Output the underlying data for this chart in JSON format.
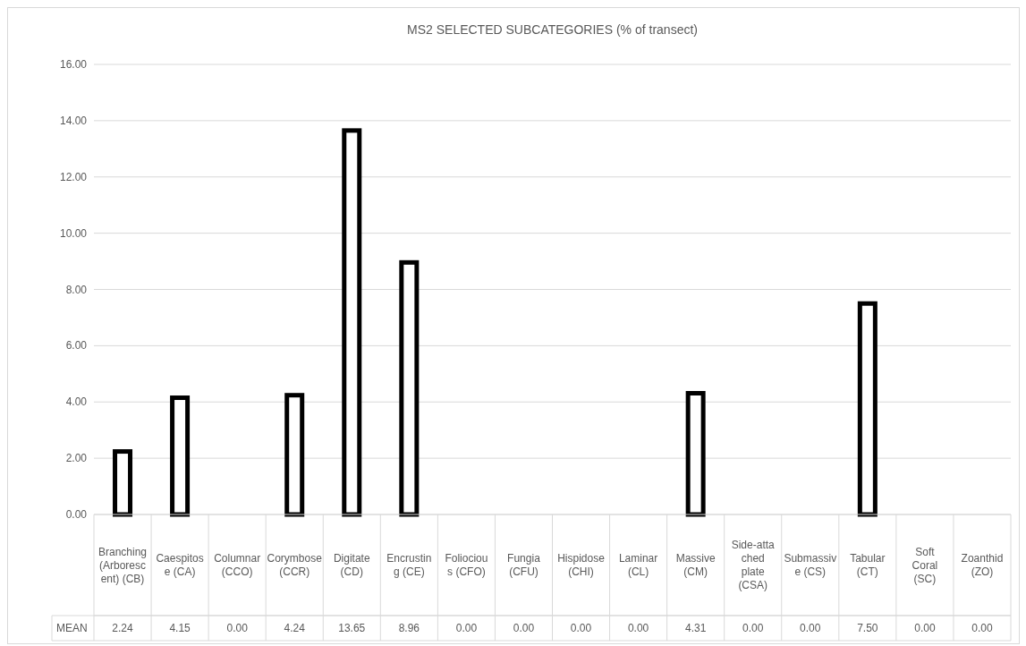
{
  "chart_data": {
    "type": "bar",
    "title": "MS2 SELECTED SUBCATEGORIES (% of transect)",
    "categories": [
      "Branching (Arborescent) (CB)",
      "Caespitose (CA)",
      "Columnar (CCO)",
      "Corymbose (CCR)",
      "Digitate (CD)",
      "Encrusting (CE)",
      "Foliocious (CFO)",
      "Fungia (CFU)",
      "Hispidose (CHI)",
      "Laminar (CL)",
      "Massive (CM)",
      "Side-attached plate (CSA)",
      "Submassive (CS)",
      "Tabular (CT)",
      "Soft Coral (SC)",
      "Zoanthid (ZO)"
    ],
    "series": [
      {
        "name": "MEAN",
        "color": "#000000",
        "values": [
          2.24,
          4.15,
          0.0,
          4.24,
          13.65,
          8.96,
          0.0,
          0.0,
          0.0,
          0.0,
          4.31,
          0.0,
          0.0,
          7.5,
          0.0,
          0.0
        ],
        "value_labels": [
          "2.24",
          "4.15",
          "0.00",
          "4.24",
          "13.65",
          "8.96",
          "0.00",
          "0.00",
          "0.00",
          "0.00",
          "4.31",
          "0.00",
          "0.00",
          "7.50",
          "0.00",
          "0.00"
        ]
      }
    ],
    "ylim": [
      0,
      16
    ],
    "yticks": [
      {
        "value": 0,
        "label": "0.00"
      },
      {
        "value": 2,
        "label": "2.00"
      },
      {
        "value": 4,
        "label": "4.00"
      },
      {
        "value": 6,
        "label": "6.00"
      },
      {
        "value": 8,
        "label": "8.00"
      },
      {
        "value": 10,
        "label": "10.00"
      },
      {
        "value": 12,
        "label": "12.00"
      },
      {
        "value": 14,
        "label": "14.00"
      },
      {
        "value": 16,
        "label": "16.00"
      }
    ],
    "grid": "y"
  }
}
